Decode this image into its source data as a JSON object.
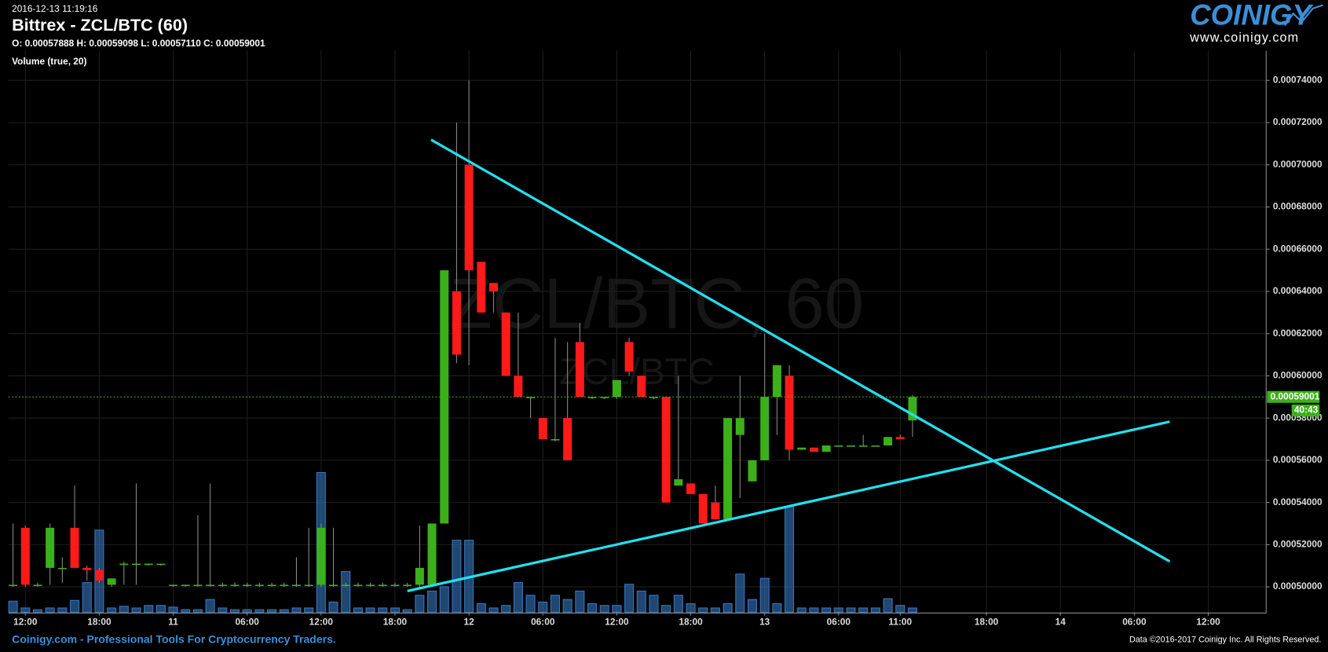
{
  "header": {
    "timestamp": "2016-12-13 11:19:16",
    "title": "Bittrex - ZCL/BTC (60)",
    "ohlc": "O: 0.00057888 H: 0.00059098 L: 0.00057110 C: 0.00059001",
    "indicator": "Volume (true, 20)",
    "logo": "COINIGY",
    "logo_url": "www.coinigy.com"
  },
  "watermark": {
    "main": "ZCL/BTC, 60",
    "sub": "ZCL/BTC"
  },
  "footer": {
    "left": "Coinigy.com - Professional Tools For Cryptocurrency Traders.",
    "right": "Data ©2016-2017 Coinigy Inc. All Rights Reserved."
  },
  "chart_data": {
    "type": "candlestick",
    "up_color": "#3cb01a",
    "down_color": "#ff1a1a",
    "volume_color": "#3a7fcf",
    "grid": true,
    "x": [
      -1,
      0,
      1,
      2,
      3,
      4,
      5,
      6,
      7,
      8,
      9,
      10,
      11,
      12,
      13,
      14,
      15,
      16,
      17,
      18,
      19,
      20,
      21,
      22,
      23,
      24,
      25,
      26,
      27,
      28,
      29,
      30,
      31,
      32,
      33,
      34,
      35,
      36,
      37,
      38,
      39,
      40,
      41,
      42,
      43,
      44,
      45,
      46,
      47,
      48,
      49,
      50,
      51,
      52,
      53,
      54,
      55,
      56,
      57,
      58,
      59,
      60,
      61,
      62,
      63,
      64,
      65,
      66,
      67,
      68,
      69,
      70,
      71,
      72
    ],
    "open": [
      0.000501,
      0.000528,
      0.000501,
      0.000509,
      0.000509,
      0.000528,
      0.000509,
      0.000508,
      0.000501,
      0.000511,
      0.000511,
      0.000511,
      0.000511,
      0.000501,
      0.000501,
      0.000501,
      0.000501,
      0.000501,
      0.000501,
      0.000501,
      0.000501,
      0.000501,
      0.000501,
      0.000501,
      0.000501,
      0.000501,
      0.000501,
      0.000501,
      0.000501,
      0.000501,
      0.000501,
      0.000501,
      0.000501,
      0.000501,
      0.000501,
      0.00053,
      0.00064,
      0.0007,
      0.000654,
      0.000644,
      0.00063,
      0.0006,
      0.00059,
      0.00058,
      0.00057,
      0.00058,
      0.000616,
      0.00059,
      0.00059,
      0.00059,
      0.000616,
      0.0006,
      0.00059,
      0.00059,
      0.000548,
      0.000549,
      0.000544,
      0.00054,
      0.000532,
      0.000572,
      0.00055,
      0.00056,
      0.00059,
      0.0006,
      0.000565,
      0.000566,
      0.000564,
      0.000567,
      0.000567,
      0.000567,
      0.000567,
      0.000567,
      0.000571,
      0.00057888
    ],
    "high": [
      0.00053,
      0.000529,
      0.000502,
      0.00053,
      0.000514,
      0.000548,
      0.00051,
      0.000509,
      0.000504,
      0.000512,
      0.000549,
      0.000511,
      0.000511,
      0.000501,
      0.000501,
      0.000534,
      0.000549,
      0.000502,
      0.000502,
      0.000502,
      0.000502,
      0.000502,
      0.000502,
      0.000514,
      0.000528,
      0.00053,
      0.000528,
      0.000502,
      0.000502,
      0.000502,
      0.000502,
      0.000502,
      0.000502,
      0.000529,
      0.00053,
      0.00065,
      0.00072,
      0.00074,
      0.000654,
      0.000644,
      0.00063,
      0.00063,
      0.00059,
      0.00058,
      0.000618,
      0.000616,
      0.000625,
      0.00059,
      0.00059,
      0.000598,
      0.000618,
      0.0006,
      0.00059,
      0.00059,
      0.0006,
      0.000549,
      0.000544,
      0.000548,
      0.00058,
      0.0006,
      0.00056,
      0.00062,
      0.000605,
      0.000605,
      0.000566,
      0.000566,
      0.000567,
      0.000567,
      0.000567,
      0.000572,
      0.000567,
      0.000571,
      0.000572,
      0.00059098
    ],
    "low": [
      0.0005,
      0.0005,
      0.0005,
      0.000501,
      0.000502,
      0.000509,
      0.000503,
      0.000502,
      0.0005,
      0.000501,
      0.000501,
      0.00051,
      0.00051,
      0.0005,
      0.0005,
      0.0005,
      0.0005,
      0.0005,
      0.0005,
      0.0005,
      0.0005,
      0.0005,
      0.0005,
      0.0005,
      0.0005,
      0.0005,
      0.0005,
      0.0005,
      0.0005,
      0.0005,
      0.0005,
      0.0005,
      0.0005,
      0.0005,
      0.0005,
      0.00053,
      0.000606,
      0.000605,
      0.00063,
      0.00063,
      0.0006,
      0.00059,
      0.00058,
      0.00057,
      0.000569,
      0.00056,
      0.00059,
      0.000589,
      0.000589,
      0.000589,
      0.0006,
      0.00059,
      0.000589,
      0.00054,
      0.000548,
      0.000544,
      0.00053,
      0.000532,
      0.000532,
      0.000542,
      0.00055,
      0.00056,
      0.000572,
      0.00056,
      0.000565,
      0.000564,
      0.000564,
      0.000567,
      0.000567,
      0.000567,
      0.000567,
      0.000567,
      0.00057,
      0.0005711
    ],
    "close": [
      0.000501,
      0.000501,
      0.000501,
      0.000528,
      0.000509,
      0.000509,
      0.000508,
      0.000503,
      0.000504,
      0.000511,
      0.000511,
      0.000511,
      0.000511,
      0.000501,
      0.000501,
      0.000501,
      0.000501,
      0.000501,
      0.000501,
      0.000501,
      0.000501,
      0.000501,
      0.000501,
      0.000501,
      0.000501,
      0.000528,
      0.000501,
      0.000501,
      0.000501,
      0.000501,
      0.000501,
      0.000501,
      0.000501,
      0.000509,
      0.00053,
      0.00065,
      0.00061,
      0.00065,
      0.00063,
      0.00064,
      0.0006,
      0.00059,
      0.00059,
      0.00057,
      0.00057,
      0.00056,
      0.00059,
      0.00059,
      0.00059,
      0.000598,
      0.000602,
      0.00059,
      0.00059,
      0.00054,
      0.000551,
      0.000544,
      0.00053,
      0.000532,
      0.00058,
      0.00058,
      0.00056,
      0.00059,
      0.000605,
      0.000565,
      0.000566,
      0.000564,
      0.000567,
      0.000567,
      0.000567,
      0.000567,
      0.000567,
      0.000571,
      0.00057,
      0.00059001
    ],
    "volume": [
      13,
      5,
      3,
      5,
      5,
      14,
      35,
      97,
      5,
      7,
      5,
      8,
      8,
      6,
      3,
      3,
      15,
      5,
      3,
      3,
      3,
      3,
      3,
      5,
      5,
      165,
      12,
      48,
      5,
      5,
      5,
      5,
      3,
      20,
      25,
      30,
      85,
      85,
      10,
      5,
      8,
      35,
      20,
      12,
      20,
      15,
      25,
      10,
      8,
      8,
      33,
      25,
      20,
      8,
      20,
      10,
      5,
      5,
      10,
      45,
      15,
      40,
      10,
      125,
      5,
      5,
      5,
      5,
      5,
      5,
      5,
      16,
      8,
      5
    ],
    "xlim": [
      -1.37,
      100.7
    ],
    "xticks": [
      {
        "value": 0,
        "label": "12:00"
      },
      {
        "value": 6,
        "label": "18:00"
      },
      {
        "value": 12,
        "label": "11"
      },
      {
        "value": 18,
        "label": "06:00"
      },
      {
        "value": 24,
        "label": "12:00"
      },
      {
        "value": 30,
        "label": "18:00"
      },
      {
        "value": 36,
        "label": "12"
      },
      {
        "value": 42,
        "label": "06:00"
      },
      {
        "value": 48,
        "label": "12:00"
      },
      {
        "value": 54,
        "label": "18:00"
      },
      {
        "value": 60,
        "label": "13"
      },
      {
        "value": 66,
        "label": "06:00"
      },
      {
        "value": 71,
        "label": "11:00"
      },
      {
        "value": 78,
        "label": "18:00"
      },
      {
        "value": 84,
        "label": "14"
      },
      {
        "value": 90,
        "label": "06:00"
      },
      {
        "value": 96,
        "label": "12:00"
      }
    ],
    "ylim": [
      0.000488,
      0.000754
    ],
    "yticks": [
      {
        "value": 0.0005,
        "label": "0.00050000"
      },
      {
        "value": 0.00052,
        "label": "0.00052000"
      },
      {
        "value": 0.00054,
        "label": "0.00054000"
      },
      {
        "value": 0.00056,
        "label": "0.00056000"
      },
      {
        "value": 0.00058,
        "label": "0.00058000"
      },
      {
        "value": 0.0006,
        "label": "0.00060000"
      },
      {
        "value": 0.00062,
        "label": "0.00062000"
      },
      {
        "value": 0.00064,
        "label": "0.00064000"
      },
      {
        "value": 0.00066,
        "label": "0.00066000"
      },
      {
        "value": 0.00068,
        "label": "0.00068000"
      },
      {
        "value": 0.0007,
        "label": "0.00070000"
      },
      {
        "value": 0.00072,
        "label": "0.00072000"
      },
      {
        "value": 0.00074,
        "label": "0.00074000"
      }
    ],
    "last_price": 0.00059001,
    "countdown": "40:43"
  }
}
